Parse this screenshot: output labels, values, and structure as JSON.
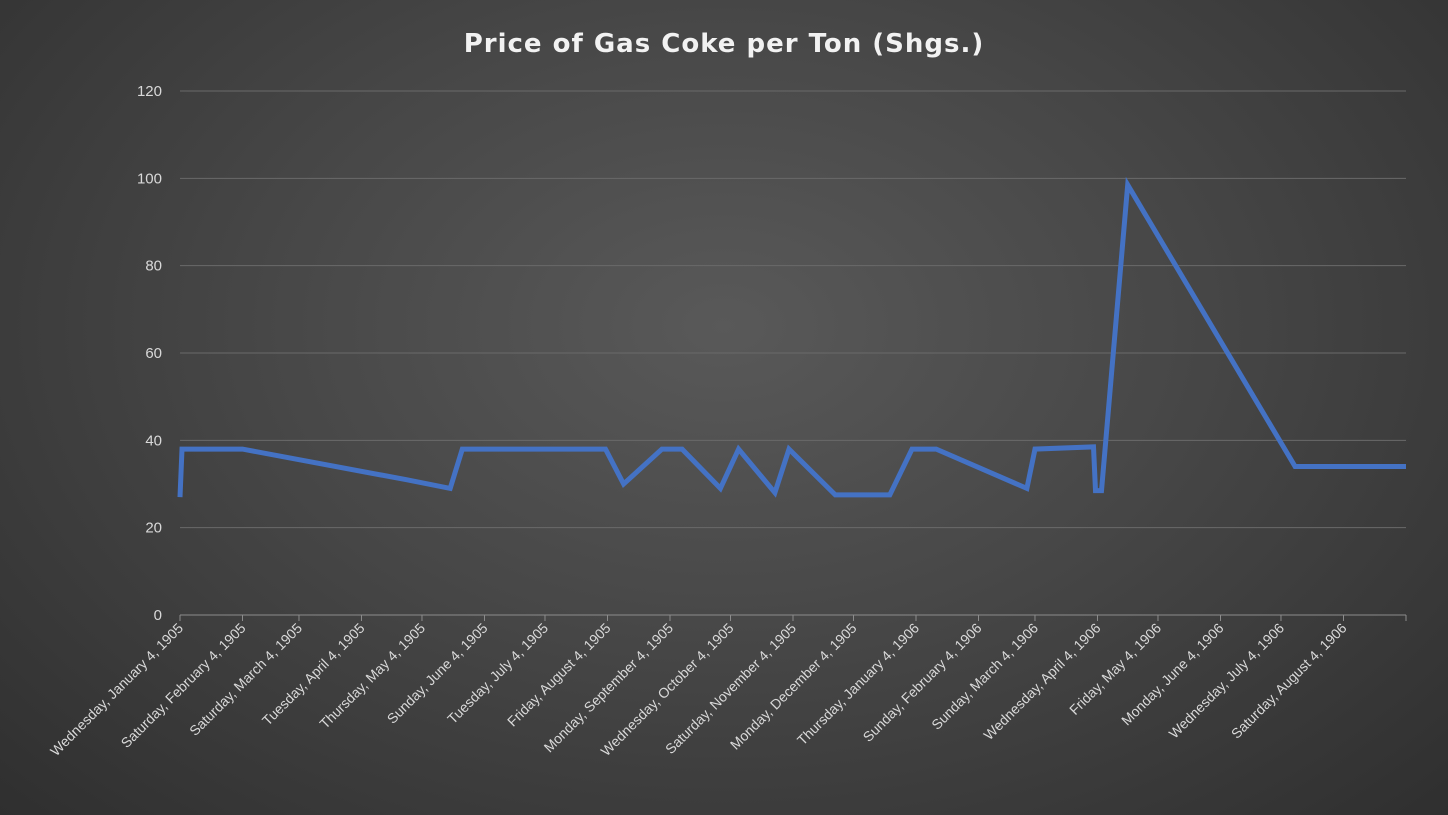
{
  "chart_data": {
    "type": "line",
    "title": "Price of Gas Coke per Ton (Shgs.)",
    "xlabel": "",
    "ylabel": "",
    "ylim": [
      0,
      120
    ],
    "yticks": [
      0,
      20,
      40,
      60,
      80,
      100,
      120
    ],
    "grid": true,
    "xlim": [
      "1905-01-04",
      "1906-09-04"
    ],
    "x_tick_labels": [
      {
        "date": "1905-01-04",
        "label": "Wednesday, January 4, 1905"
      },
      {
        "date": "1905-02-04",
        "label": "Saturday, February 4, 1905"
      },
      {
        "date": "1905-03-04",
        "label": "Saturday, March 4, 1905"
      },
      {
        "date": "1905-04-04",
        "label": "Tuesday, April 4, 1905"
      },
      {
        "date": "1905-05-04",
        "label": "Thursday, May 4, 1905"
      },
      {
        "date": "1905-06-04",
        "label": "Sunday, June 4, 1905"
      },
      {
        "date": "1905-07-04",
        "label": "Tuesday, July 4, 1905"
      },
      {
        "date": "1905-08-04",
        "label": "Friday, August 4, 1905"
      },
      {
        "date": "1905-09-04",
        "label": "Monday, September 4, 1905"
      },
      {
        "date": "1905-10-04",
        "label": "Wednesday, October 4, 1905"
      },
      {
        "date": "1905-11-04",
        "label": "Saturday, November 4, 1905"
      },
      {
        "date": "1905-12-04",
        "label": "Monday, December 4, 1905"
      },
      {
        "date": "1906-01-04",
        "label": "Thursday, January 4, 1906"
      },
      {
        "date": "1906-02-04",
        "label": "Sunday, February 4, 1906"
      },
      {
        "date": "1906-03-04",
        "label": "Sunday, March 4, 1906"
      },
      {
        "date": "1906-04-04",
        "label": "Wednesday, April 4, 1906"
      },
      {
        "date": "1906-05-04",
        "label": "Friday, May 4, 1906"
      },
      {
        "date": "1906-06-04",
        "label": "Monday, June 4, 1906"
      },
      {
        "date": "1906-07-04",
        "label": "Wednesday, July 4, 1906"
      },
      {
        "date": "1906-08-04",
        "label": "Saturday, August 4, 1906"
      }
    ],
    "series": [
      {
        "color": "#4472c4",
        "points": [
          {
            "x": "1905-01-04",
            "y": 27
          },
          {
            "x": "1905-01-05",
            "y": 38
          },
          {
            "x": "1905-02-04",
            "y": 38
          },
          {
            "x": "1905-04-26",
            "y": 31
          },
          {
            "x": "1905-05-18",
            "y": 29
          },
          {
            "x": "1905-05-24",
            "y": 38
          },
          {
            "x": "1905-08-03",
            "y": 38
          },
          {
            "x": "1905-08-12",
            "y": 30
          },
          {
            "x": "1905-08-31",
            "y": 38
          },
          {
            "x": "1905-09-10",
            "y": 38
          },
          {
            "x": "1905-09-29",
            "y": 29
          },
          {
            "x": "1905-10-08",
            "y": 38
          },
          {
            "x": "1905-10-26",
            "y": 28
          },
          {
            "x": "1905-11-02",
            "y": 38
          },
          {
            "x": "1905-11-25",
            "y": 27.5
          },
          {
            "x": "1905-12-22",
            "y": 27.5
          },
          {
            "x": "1906-01-02",
            "y": 38
          },
          {
            "x": "1906-01-14",
            "y": 38
          },
          {
            "x": "1906-02-28",
            "y": 29
          },
          {
            "x": "1906-03-04",
            "y": 38
          },
          {
            "x": "1906-04-02",
            "y": 38.5
          },
          {
            "x": "1906-04-03",
            "y": 28.5
          },
          {
            "x": "1906-04-06",
            "y": 28.5
          },
          {
            "x": "1906-04-19",
            "y": 98.5
          },
          {
            "x": "1906-07-11",
            "y": 34
          },
          {
            "x": "1906-09-04",
            "y": 34
          }
        ]
      }
    ]
  }
}
